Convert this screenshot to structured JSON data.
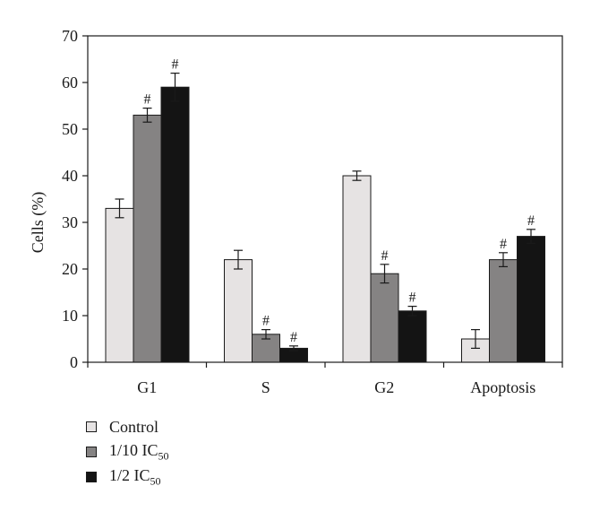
{
  "chart_data": {
    "type": "bar",
    "title": "",
    "xlabel": "",
    "ylabel": "Cells (%)",
    "ylim": [
      0,
      70
    ],
    "yticks": [
      0,
      10,
      20,
      30,
      40,
      50,
      60,
      70
    ],
    "grid": false,
    "legend_position": "bottom-left",
    "categories": [
      "G1",
      "S",
      "G2",
      "Apoptosis"
    ],
    "significance_marker": "#",
    "series": [
      {
        "name": "Control",
        "label_main": "Control",
        "label_sub": "",
        "color": "#e6e3e3",
        "values": [
          33,
          22,
          40,
          5
        ],
        "errors": [
          2,
          2,
          1,
          2
        ],
        "significant": [
          false,
          false,
          false,
          false
        ]
      },
      {
        "name": "1/10 IC50",
        "label_main": "1/10 IC",
        "label_sub": "50",
        "color": "#858383",
        "values": [
          53,
          6,
          19,
          22
        ],
        "errors": [
          1.5,
          1,
          2,
          1.5
        ],
        "significant": [
          true,
          true,
          true,
          true
        ]
      },
      {
        "name": "1/2 IC50",
        "label_main": "1/2 IC",
        "label_sub": "50",
        "color": "#141414",
        "values": [
          59,
          3,
          11,
          27
        ],
        "errors": [
          3,
          0.5,
          1,
          1.5
        ],
        "significant": [
          true,
          true,
          true,
          true
        ]
      }
    ]
  }
}
